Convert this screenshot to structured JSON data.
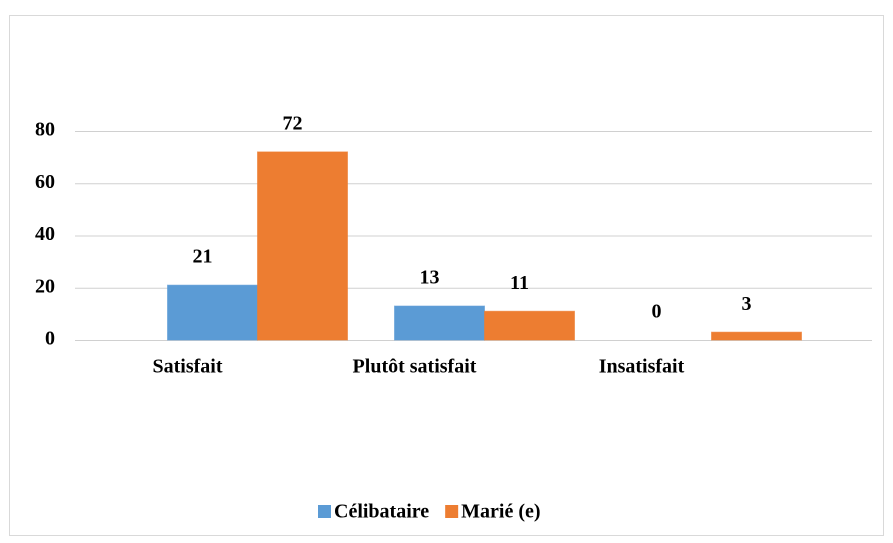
{
  "chart_data": {
    "type": "bar",
    "categories": [
      "Satisfait",
      "Plutôt satisfait",
      "Insatisfait"
    ],
    "series": [
      {
        "name": "Célibataire",
        "color": "#5b9bd5",
        "values": [
          21,
          13,
          0
        ]
      },
      {
        "name": "Marié (e)",
        "color": "#ed7d31",
        "values": [
          72,
          11,
          3
        ]
      }
    ],
    "ylim": [
      0,
      80
    ],
    "yticks": [
      0,
      20,
      40,
      60,
      80
    ],
    "grid": true,
    "legend": "bottom"
  }
}
